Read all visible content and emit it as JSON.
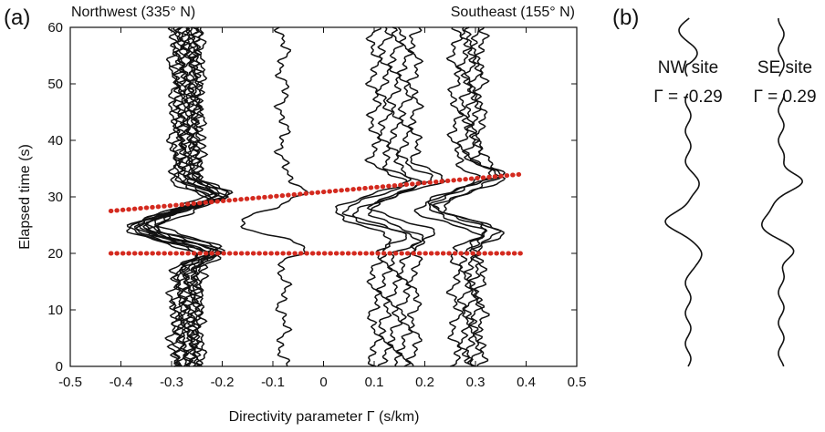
{
  "panel_a_label": "(a)",
  "panel_b_label": "(b)",
  "chart_data": [
    {
      "type": "line",
      "panel": "(a)",
      "direction_labels": {
        "left": "Northwest (335° N)",
        "right": "Southeast (155° N)"
      },
      "xlabel": "Directivity parameter Γ (s/km)",
      "ylabel": "Elapsed time (s)",
      "xlim": [
        -0.5,
        0.5
      ],
      "ylim": [
        0,
        60
      ],
      "xticks": [
        -0.5,
        -0.4,
        -0.3,
        -0.2,
        -0.1,
        0,
        0.1,
        0.2,
        0.3,
        0.4,
        0.5
      ],
      "xtick_labels": [
        "-0.5",
        "-0.4",
        "-0.3",
        "-0.2",
        "-0.1",
        "0",
        "0.1",
        "0.2",
        "0.3",
        "0.4",
        "0.5"
      ],
      "yticks": [
        0,
        10,
        20,
        30,
        40,
        50,
        60
      ],
      "ytick_labels": [
        "0",
        "10",
        "20",
        "30",
        "40",
        "50",
        "60"
      ],
      "grid": false,
      "trace_color": "#111111",
      "trace_baselines": [
        -0.295,
        -0.29,
        -0.285,
        -0.28,
        -0.275,
        -0.27,
        -0.265,
        -0.26,
        -0.255,
        -0.25,
        -0.25,
        -0.245,
        -0.08,
        0.1,
        0.12,
        0.14,
        0.16,
        0.18,
        0.26,
        0.28,
        0.29,
        0.3,
        0.31
      ],
      "trace_peak_shift": [
        -0.09,
        -0.085,
        -0.09,
        -0.08,
        -0.085,
        -0.09,
        -0.08,
        -0.085,
        -0.09,
        -0.08,
        -0.085,
        -0.08,
        -0.08,
        -0.08,
        -0.07,
        -0.08,
        -0.075,
        -0.08,
        -0.07,
        -0.075,
        -0.08,
        -0.07,
        -0.075
      ],
      "trace_trough_shift": [
        0.065,
        0.06,
        0.065,
        0.055,
        0.06,
        0.065,
        0.055,
        0.06,
        0.065,
        0.055,
        0.06,
        0.055,
        0.05,
        0.055,
        0.05,
        0.055,
        0.05,
        0.055,
        0.05,
        0.055,
        0.05,
        0.055,
        0.05
      ],
      "reference_lines": [
        {
          "x": [
            -0.42,
            0.39
          ],
          "y": [
            20,
            20
          ],
          "color": "#d42a1f",
          "style": "dotted"
        },
        {
          "x": [
            -0.42,
            0.39
          ],
          "y": [
            27.5,
            34
          ],
          "color": "#d42a1f",
          "style": "dotted"
        }
      ]
    },
    {
      "type": "line",
      "panel": "(b)",
      "series": [
        {
          "name": "NW site",
          "gamma_label": "Γ = -0.29",
          "trough_time": 25
        },
        {
          "name": "SE site",
          "gamma_label": "Γ = 0.29",
          "trough_time": 25
        }
      ],
      "trace_color": "#111111"
    }
  ]
}
